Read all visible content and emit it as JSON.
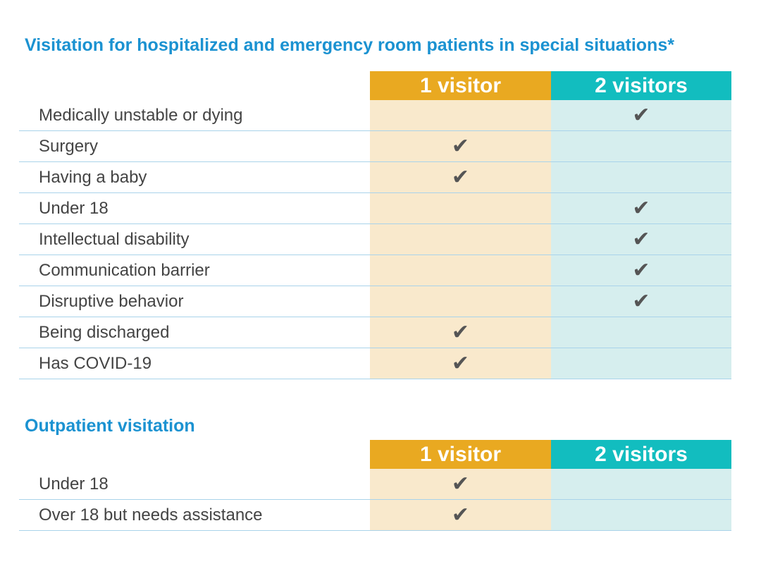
{
  "section1": {
    "title": "Visitation for hospitalized and emergency room patients in special situations*",
    "headers": [
      "1 visitor",
      "2 visitors"
    ],
    "rows": [
      {
        "label": "Medically unstable or dying",
        "one": "",
        "two": "✔"
      },
      {
        "label": "Surgery",
        "one": "✔",
        "two": ""
      },
      {
        "label": "Having a baby",
        "one": "✔",
        "two": ""
      },
      {
        "label": "Under 18",
        "one": "",
        "two": "✔"
      },
      {
        "label": "Intellectual disability",
        "one": "",
        "two": "✔"
      },
      {
        "label": "Communication barrier",
        "one": "",
        "two": "✔"
      },
      {
        "label": "Disruptive behavior",
        "one": "",
        "two": "✔"
      },
      {
        "label": "Being discharged",
        "one": "✔",
        "two": ""
      },
      {
        "label": "Has COVID-19",
        "one": "✔",
        "two": ""
      }
    ]
  },
  "section2": {
    "title": "Outpatient visitation",
    "headers": [
      "1 visitor",
      "2 visitors"
    ],
    "rows": [
      {
        "label": "Under 18",
        "one": "✔",
        "two": ""
      },
      {
        "label": "Over 18 but needs assistance",
        "one": "✔",
        "two": ""
      }
    ]
  },
  "colors": {
    "title": "#1b92d1",
    "one_visitor": "#e9a921",
    "two_visitors": "#12bdbf",
    "one_bg": "#f9e9cc",
    "two_bg": "#d6eeee"
  }
}
